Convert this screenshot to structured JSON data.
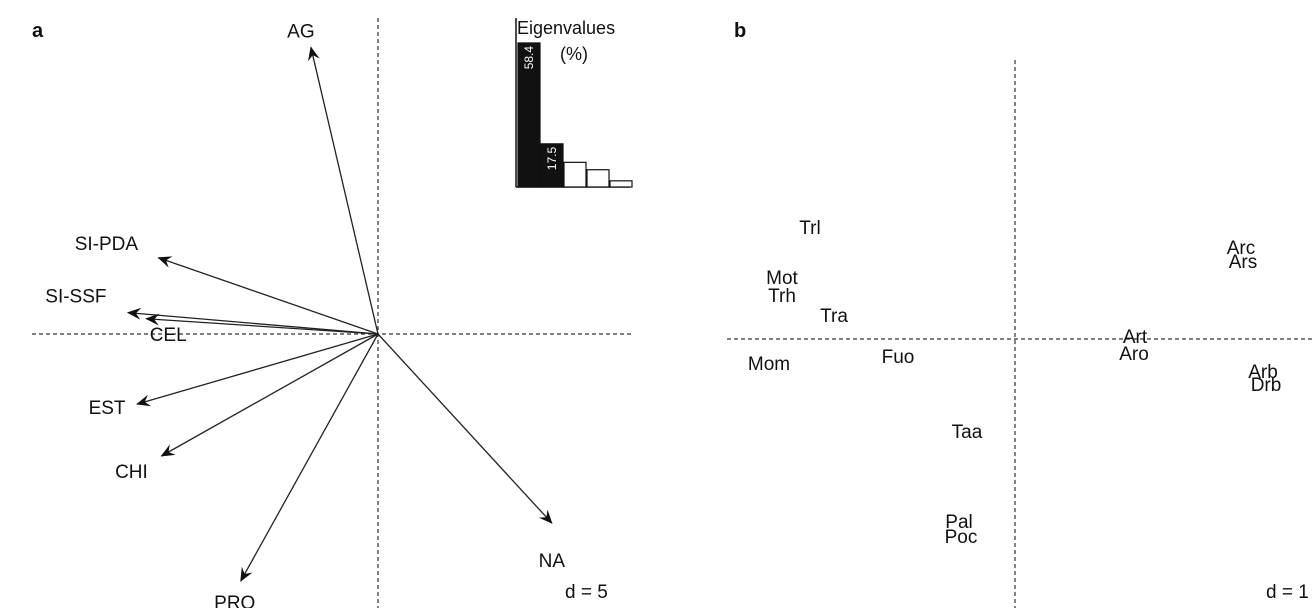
{
  "panel_a": {
    "letter": "a",
    "scale_label": "d = 5"
  },
  "panel_b": {
    "letter": "b",
    "scale_label": "d = 1"
  },
  "chart_data": [
    {
      "type": "scatter",
      "subtype": "biplot-arrows",
      "panel": "a",
      "arrow_units": "correlation circle (d = 5 grid)",
      "vectors": [
        {
          "label": "AG",
          "x": -0.22,
          "y": 0.94
        },
        {
          "label": "SI-PDA",
          "x": -0.72,
          "y": 0.25
        },
        {
          "label": "SI-SSF",
          "x": -0.82,
          "y": 0.07
        },
        {
          "label": "CEL",
          "x": -0.76,
          "y": 0.05
        },
        {
          "label": "EST",
          "x": -0.79,
          "y": -0.23
        },
        {
          "label": "CHI",
          "x": -0.71,
          "y": -0.4
        },
        {
          "label": "PRO",
          "x": -0.45,
          "y": -0.81
        },
        {
          "label": "NA",
          "x": 0.57,
          "y": -0.62
        }
      ],
      "grid": false,
      "axes_dashed": true
    },
    {
      "type": "bar",
      "panel": "a-inset",
      "title": "Eigenvalues",
      "subtitle": "(%)",
      "values": [
        58.4,
        17.5,
        10.0,
        7.0,
        2.5
      ],
      "value_labels": [
        "58.4",
        "17.5",
        "",
        "",
        ""
      ],
      "filled": [
        true,
        true,
        false,
        false,
        false
      ],
      "ylim": [
        0,
        60
      ]
    },
    {
      "type": "scatter",
      "panel": "b",
      "points": [
        {
          "label": "Trl",
          "x": -2.05,
          "y": 1.12
        },
        {
          "label": "Mot",
          "x": -2.33,
          "y": 0.62
        },
        {
          "label": "Trh",
          "x": -2.33,
          "y": 0.44
        },
        {
          "label": "Tra",
          "x": -1.81,
          "y": 0.24
        },
        {
          "label": "Mom",
          "x": -2.46,
          "y": -0.24
        },
        {
          "label": "Fuo",
          "x": -1.17,
          "y": -0.17
        },
        {
          "label": "Art",
          "x": 1.2,
          "y": 0.03
        },
        {
          "label": "Aro",
          "x": 1.19,
          "y": -0.14
        },
        {
          "label": "Arc",
          "x": 2.26,
          "y": 0.92
        },
        {
          "label": "Ars",
          "x": 2.28,
          "y": 0.78
        },
        {
          "label": "Arb",
          "x": 2.48,
          "y": -0.32
        },
        {
          "label": "Drb",
          "x": 2.51,
          "y": -0.45
        },
        {
          "label": "Taa",
          "x": -0.48,
          "y": -0.92
        },
        {
          "label": "Pal",
          "x": -0.56,
          "y": -1.82
        },
        {
          "label": "Poc",
          "x": -0.54,
          "y": -1.97
        }
      ],
      "grid": false,
      "axes_dashed": true
    }
  ]
}
